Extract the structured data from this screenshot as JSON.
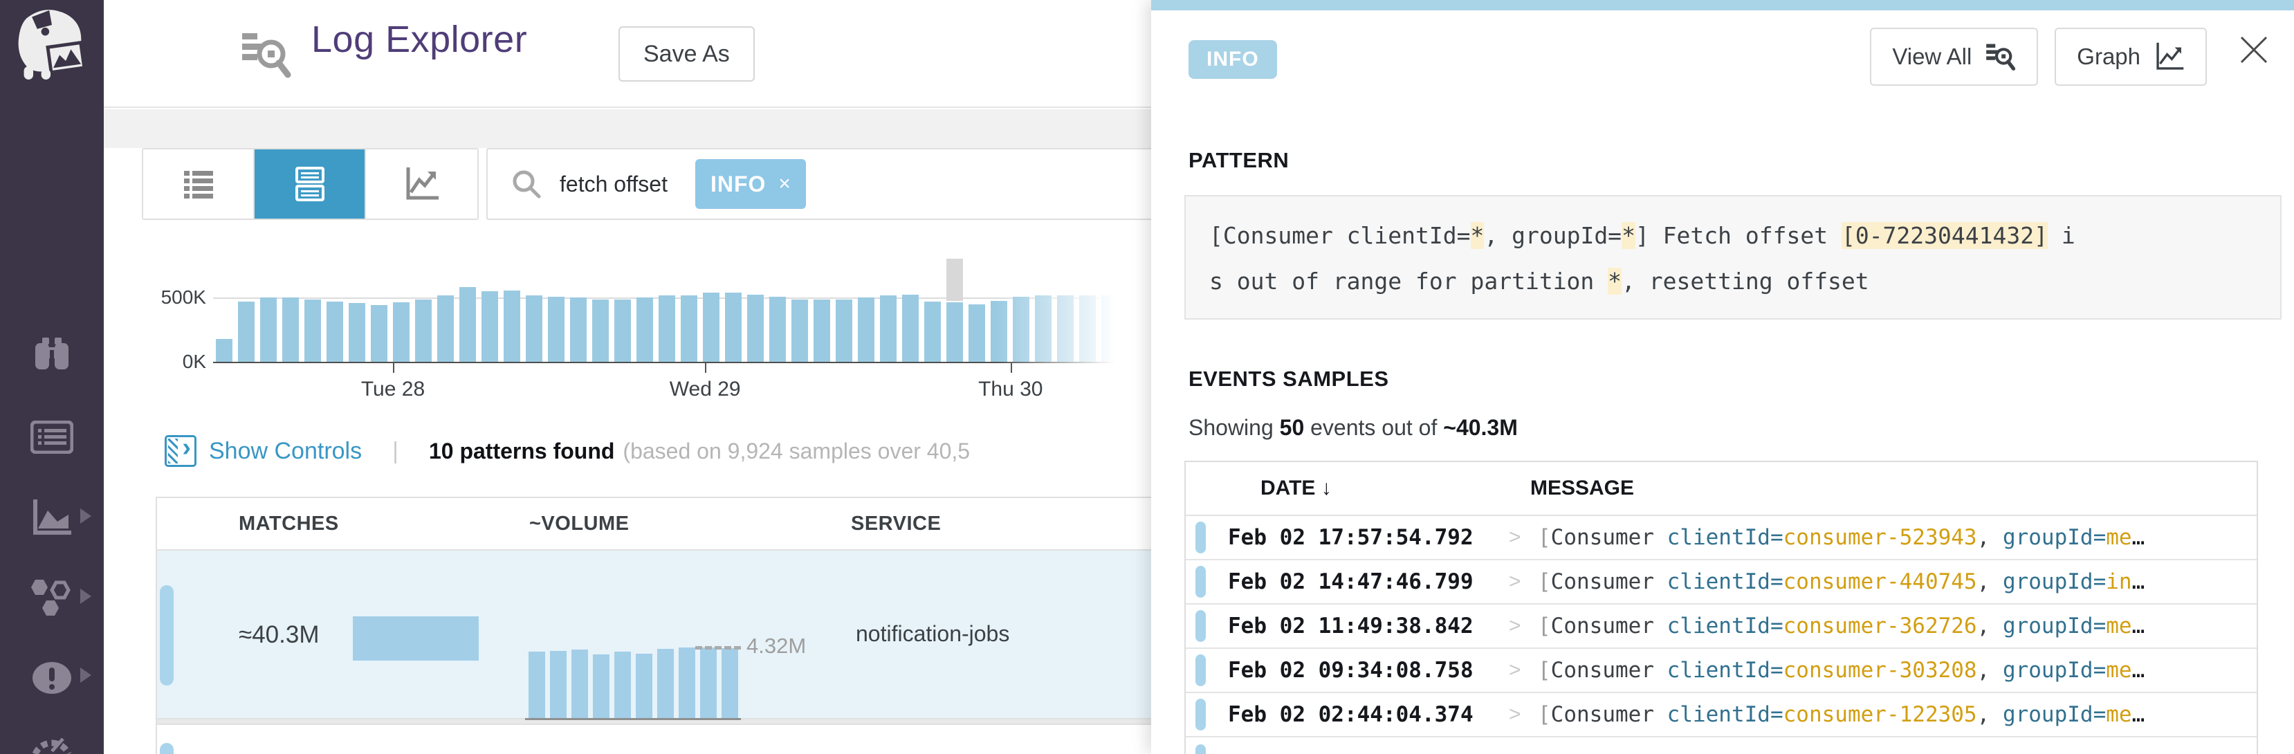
{
  "colors": {
    "sidebar_bg": "#3B3547",
    "title_purple": "#4F3D78",
    "accent_blue": "#3D9BC6",
    "link_blue": "#3896C4",
    "hist_bar": "#9ACAE2",
    "hist_bar_hover": "#D8D8D8",
    "severity_pill": "#A9D4EB",
    "selected_row_bg": "#E7F3F9",
    "tag_bg": "#8FC7E6",
    "panel_strip": "#A9D3E7",
    "highlight_bg": "#FCEFCE",
    "msg_key_teal": "#31708F",
    "msg_val_gold": "#D29E12"
  },
  "sidebar": {
    "logo": "datadog-dog-logo",
    "icons": [
      "watchdog-binoculars",
      "events-list",
      "metrics-graph",
      "integrations-hexagons",
      "monitors-error",
      "dashboards-gauge"
    ]
  },
  "header": {
    "title": "Log Explorer",
    "save_as_label": "Save As"
  },
  "toolbar": {
    "view_toggles": [
      "list-view",
      "pattern-view",
      "analytics-view"
    ],
    "active_toggle": "pattern-view",
    "search_query": "fetch offset",
    "filter_tag": "INFO",
    "filter_tag_close": "×"
  },
  "chart_data": [
    {
      "type": "bar",
      "title": "Log volume over time",
      "unit": "K",
      "ylim": [
        0,
        800
      ],
      "y_ticks": [
        "500K",
        "0K"
      ],
      "x_ticks": [
        "Tue 28",
        "Wed 29",
        "Thu 30"
      ],
      "x_tick_bar_positions": [
        8,
        22.1,
        35.9
      ],
      "values": [
        180,
        470,
        500,
        500,
        485,
        470,
        455,
        440,
        465,
        485,
        515,
        580,
        550,
        555,
        515,
        505,
        500,
        485,
        485,
        500,
        515,
        515,
        535,
        540,
        520,
        505,
        485,
        485,
        485,
        500,
        515,
        520,
        470,
        460,
        445,
        475,
        505,
        515,
        515,
        515,
        515,
        520,
        520
      ],
      "overlay": {
        "index": 33,
        "total": 790,
        "note": "hovered bucket shown gray"
      },
      "grid": "500K line only",
      "legend": "none"
    },
    {
      "type": "bar",
      "title": "Pattern volume sparkline (row 1)",
      "unit": "M",
      "ylim": [
        0,
        4.32
      ],
      "values": [
        4.05,
        4.12,
        4.18,
        3.9,
        4.08,
        3.95,
        4.22,
        4.32,
        4.3,
        4.26
      ],
      "max_label": "4.32M",
      "legend": "none"
    }
  ],
  "controls": {
    "show_controls_label": "Show Controls",
    "separator": "|",
    "patterns_found": "10 patterns found",
    "patterns_note": "(based on 9,924 samples over 40,5"
  },
  "patterns_table": {
    "columns": [
      "MATCHES",
      "~VOLUME",
      "SERVICE"
    ],
    "rows": [
      {
        "matches": "≈40.3M",
        "volume_max_label": "4.32M",
        "service": "notification-jobs",
        "selected": true
      }
    ]
  },
  "panel": {
    "status_badge": "INFO",
    "view_all_label": "View All",
    "graph_label": "Graph",
    "close_icon": "×",
    "pattern_heading": "PATTERN",
    "pattern_lines": [
      [
        {
          "t": "[Consumer clientId=",
          "hl": false
        },
        {
          "t": "*",
          "hl": true
        },
        {
          "t": ", groupId=",
          "hl": false
        },
        {
          "t": "*",
          "hl": true
        },
        {
          "t": "] Fetch offset ",
          "hl": false
        },
        {
          "t": "[0-72230441432]",
          "hl": true
        },
        {
          "t": " i",
          "hl": false
        }
      ],
      [
        {
          "t": "s out of range for partition ",
          "hl": false
        },
        {
          "t": "*",
          "hl": true
        },
        {
          "t": ", resetting offset",
          "hl": false
        }
      ]
    ],
    "events_heading": "EVENTS SAMPLES",
    "showing": {
      "prefix": "Showing ",
      "count": "50",
      "mid": " events out of ",
      "total": "~40.3M"
    },
    "events_table": {
      "date_header": "DATE",
      "sort_icon": "↓",
      "message_header": "MESSAGE",
      "expand_chevron": ">",
      "rows": [
        {
          "date": "Feb 02 17:57:54.792",
          "bracket": "[",
          "consumer": "Consumer ",
          "key1": "clientId=",
          "val1": "consumer-523943",
          "comma": ", ",
          "key2": "groupId=",
          "val2": "me",
          "ellipsis": "…"
        },
        {
          "date": "Feb 02 14:47:46.799",
          "bracket": "[",
          "consumer": "Consumer ",
          "key1": "clientId=",
          "val1": "consumer-440745",
          "comma": ", ",
          "key2": "groupId=",
          "val2": "in",
          "ellipsis": "…"
        },
        {
          "date": "Feb 02 11:49:38.842",
          "bracket": "[",
          "consumer": "Consumer ",
          "key1": "clientId=",
          "val1": "consumer-362726",
          "comma": ", ",
          "key2": "groupId=",
          "val2": "me",
          "ellipsis": "…"
        },
        {
          "date": "Feb 02 09:34:08.758",
          "bracket": "[",
          "consumer": "Consumer ",
          "key1": "clientId=",
          "val1": "consumer-303208",
          "comma": ", ",
          "key2": "groupId=",
          "val2": "me",
          "ellipsis": "…"
        },
        {
          "date": "Feb 02 02:44:04.374",
          "bracket": "[",
          "consumer": "Consumer ",
          "key1": "clientId=",
          "val1": "consumer-122305",
          "comma": ", ",
          "key2": "groupId=",
          "val2": "me",
          "ellipsis": "…"
        }
      ]
    }
  }
}
